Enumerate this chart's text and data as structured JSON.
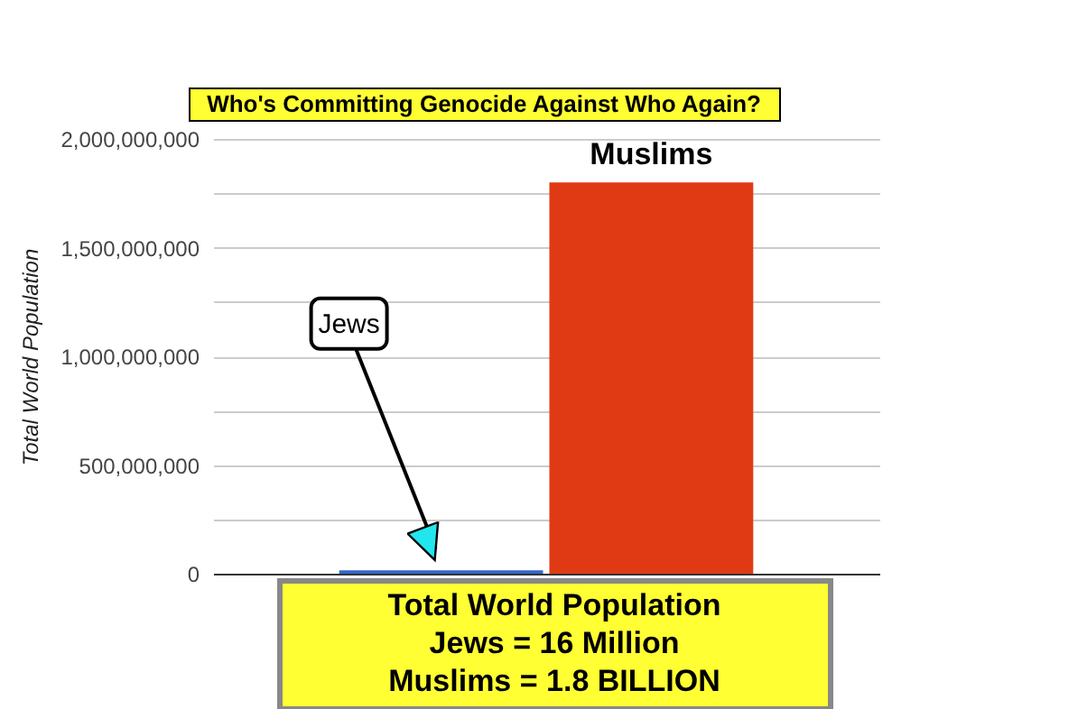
{
  "chart_data": {
    "type": "bar",
    "title": "Who's Committing Genocide Against Who Again?",
    "ylabel": "Total World Population",
    "categories": [
      "Jews",
      "Muslims"
    ],
    "values": [
      16000000,
      1800000000
    ],
    "colors": [
      "#3366cc",
      "#e03a14"
    ],
    "ylim": [
      0,
      2000000000
    ],
    "yticks": [
      {
        "value": 0,
        "label": "0"
      },
      {
        "value": 250000000,
        "label": null
      },
      {
        "value": 500000000,
        "label": "500,000,000"
      },
      {
        "value": 750000000,
        "label": null
      },
      {
        "value": 1000000000,
        "label": "1,000,000,000"
      },
      {
        "value": 1250000000,
        "label": null
      },
      {
        "value": 1500000000,
        "label": "1,500,000,000"
      },
      {
        "value": 1750000000,
        "label": null
      },
      {
        "value": 2000000000,
        "label": "2,000,000,000"
      }
    ],
    "grid": true,
    "legend": false,
    "annotations": [
      "Total World Population",
      "Jews = 16 Million",
      "Muslims = 1.8 BILLION"
    ]
  }
}
